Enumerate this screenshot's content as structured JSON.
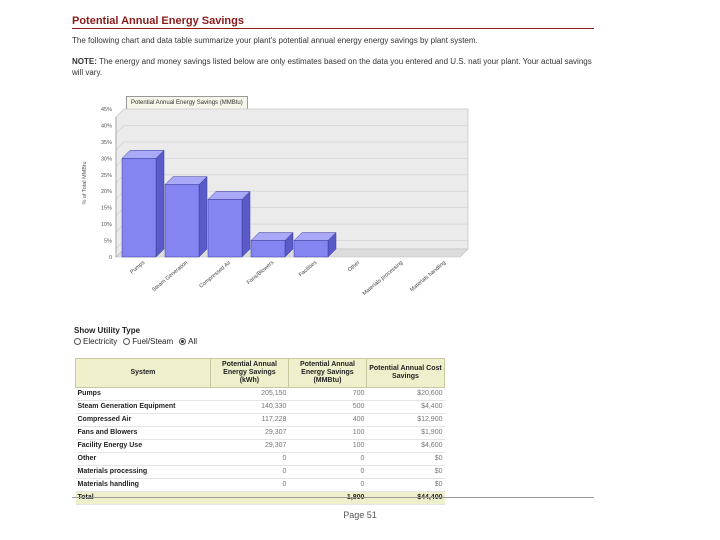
{
  "header": {
    "title": "Potential Annual Energy Savings",
    "description": "The following chart and data table summarize your plant's potential annual energy energy savings by plant system.",
    "note_label": "NOTE:",
    "note_text": " The energy and money savings listed below are only estimates based on the data you entered and U.S. nati your plant. Your actual savings will vary."
  },
  "colors": {
    "title": "#8b1a1a",
    "bar_front": "#8585f2",
    "bar_top": "#a9a9f8",
    "bar_side": "#5a5ac8",
    "plot_bg": "#ebebeb",
    "table_header": "#eef0cc"
  },
  "chart_tab_label": "Potential Annual Energy Savings (MMBtu)",
  "chart_data": {
    "type": "bar",
    "ylabel": "% of Total MMBtu",
    "categories": [
      "Pumps",
      "Steam Generation",
      "Compressed Air",
      "Fans/Blowers",
      "Facilities",
      "Other",
      "Materials processing",
      "Materials handling"
    ],
    "values": [
      30,
      22,
      17.5,
      5,
      5,
      0,
      0,
      0
    ],
    "yticks": [
      "0",
      "5%",
      "10%",
      "15%",
      "20%",
      "25%",
      "30%",
      "35%",
      "40%",
      "45%"
    ],
    "ylim": [
      0,
      45
    ]
  },
  "utility": {
    "title": "Show Utility Type",
    "options": [
      {
        "label": "Electricity",
        "selected": false
      },
      {
        "label": "Fuel/Steam",
        "selected": false
      },
      {
        "label": "All",
        "selected": true
      }
    ]
  },
  "table": {
    "headers": [
      "System",
      "Potential Annual Energy Savings (kWh)",
      "Potential Annual Energy Savings (MMBtu)",
      "Potential Annual Cost Savings"
    ],
    "rows": [
      [
        "Pumps",
        "205,150",
        "700",
        "$20,600"
      ],
      [
        "Steam Generation Equipment",
        "140,330",
        "500",
        "$4,400"
      ],
      [
        "Compressed Air",
        "117,228",
        "400",
        "$12,900"
      ],
      [
        "Fans and Blowers",
        "29,307",
        "100",
        "$1,900"
      ],
      [
        "Facility Energy Use",
        "29,307",
        "100",
        "$4,600"
      ],
      [
        "Other",
        "0",
        "0",
        "$0"
      ],
      [
        "Materials processing",
        "0",
        "0",
        "$0"
      ],
      [
        "Materials handling",
        "0",
        "0",
        "$0"
      ]
    ],
    "total": [
      "Total",
      "",
      "1,800",
      "$44,400"
    ]
  },
  "footer": {
    "page": "Page 51"
  }
}
